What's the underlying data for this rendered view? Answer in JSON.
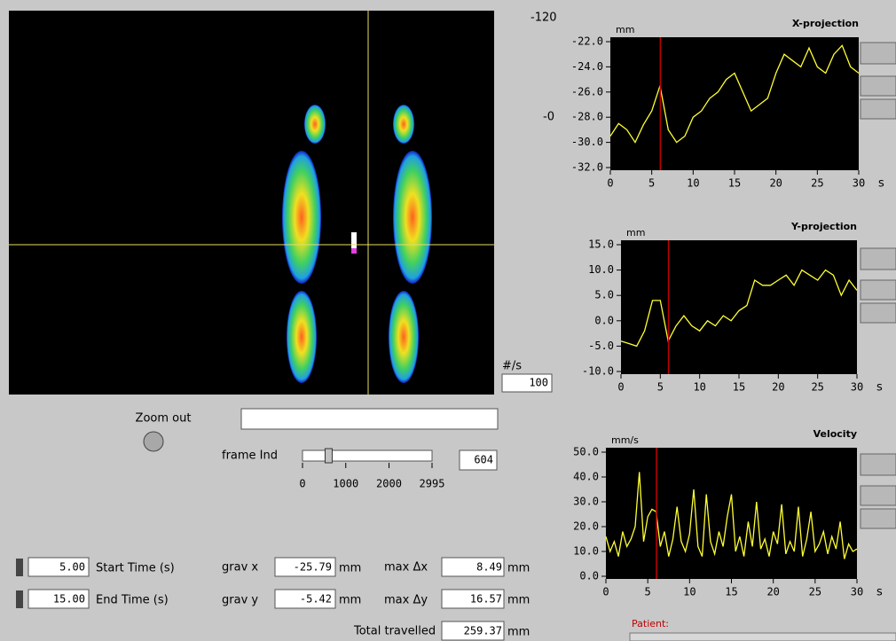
{
  "chart_data": [
    {
      "type": "line",
      "title": "X-projection",
      "y_unit": "mm",
      "x_unit": "s",
      "color": "#ffff33",
      "cursor": 6.04,
      "cursor_color": "#c00000",
      "xlim": [
        0,
        30
      ],
      "xticks": [
        0,
        5,
        10,
        15,
        20,
        25,
        30
      ],
      "ylim": [
        -32,
        -22
      ],
      "yticks": [
        {
          "value": -22,
          "label": "-22.0"
        },
        {
          "value": -24,
          "label": "-24.0"
        },
        {
          "value": -26,
          "label": "-26.0"
        },
        {
          "value": -28,
          "label": "-28.0"
        },
        {
          "value": -30,
          "label": "-30.0"
        },
        {
          "value": -32,
          "label": "-32.0"
        }
      ],
      "x": [
        0,
        1,
        2,
        3,
        4,
        5,
        6,
        7,
        8,
        9,
        10,
        11,
        12,
        13,
        14,
        15,
        16,
        17,
        18,
        19,
        20,
        21,
        22,
        23,
        24,
        25,
        26,
        27,
        28,
        29,
        30
      ],
      "values": [
        -29.5,
        -28.5,
        -29,
        -30,
        -28.6,
        -27.5,
        -25.5,
        -29,
        -30,
        -29.5,
        -28,
        -27.5,
        -26.5,
        -26,
        -25,
        -24.5,
        -26,
        -27.5,
        -27,
        -26.5,
        -24.5,
        -23,
        -23.5,
        -24,
        -22.5,
        -24,
        -24.5,
        -23,
        -22.3,
        -24,
        -24.5
      ]
    },
    {
      "type": "line",
      "title": "Y-projection",
      "y_unit": "mm",
      "x_unit": "s",
      "color": "#ffff33",
      "cursor": 6.04,
      "cursor_color": "#c00000",
      "xlim": [
        0,
        30
      ],
      "xticks": [
        0,
        5,
        10,
        15,
        20,
        25,
        30
      ],
      "ylim": [
        -10,
        15
      ],
      "yticks": [
        {
          "value": 15,
          "label": "15.0"
        },
        {
          "value": 10,
          "label": "10.0"
        },
        {
          "value": 5,
          "label": "5.0"
        },
        {
          "value": 0,
          "label": "0.0"
        },
        {
          "value": -5,
          "label": "-5.0"
        },
        {
          "value": -10,
          "label": "-10.0"
        }
      ],
      "x": [
        0,
        1,
        2,
        3,
        4,
        5,
        6,
        7,
        8,
        9,
        10,
        11,
        12,
        13,
        14,
        15,
        16,
        17,
        18,
        19,
        20,
        21,
        22,
        23,
        24,
        25,
        26,
        27,
        28,
        29,
        30
      ],
      "values": [
        -4,
        -4.5,
        -5,
        -2,
        4,
        4,
        -4,
        -1,
        1,
        -1,
        -2,
        0,
        -1,
        1,
        0,
        2,
        3,
        8,
        7,
        7,
        8,
        9,
        7,
        10,
        9,
        8,
        10,
        9,
        5,
        8,
        6
      ]
    },
    {
      "type": "line",
      "title": "Velocity",
      "y_unit": "mm/s",
      "x_unit": "s",
      "color": "#ffff33",
      "cursor": 6.04,
      "cursor_color": "#c00000",
      "xlim": [
        0,
        30
      ],
      "xticks": [
        0,
        5,
        10,
        15,
        20,
        25,
        30
      ],
      "ylim": [
        0,
        50
      ],
      "yticks": [
        {
          "value": 50,
          "label": "50.0"
        },
        {
          "value": 40,
          "label": "40.0"
        },
        {
          "value": 30,
          "label": "30.0"
        },
        {
          "value": 20,
          "label": "20.0"
        },
        {
          "value": 10,
          "label": "10.0"
        },
        {
          "value": 0,
          "label": "0.0"
        }
      ],
      "x": [
        0,
        0.5,
        1,
        1.5,
        2,
        2.5,
        3,
        3.5,
        4,
        4.5,
        5,
        5.5,
        6,
        6.5,
        7,
        7.5,
        8,
        8.5,
        9,
        9.5,
        10,
        10.5,
        11,
        11.5,
        12,
        12.5,
        13,
        13.5,
        14,
        14.5,
        15,
        15.5,
        16,
        16.5,
        17,
        17.5,
        18,
        18.5,
        19,
        19.5,
        20,
        20.5,
        21,
        21.5,
        22,
        22.5,
        23,
        23.5,
        24,
        24.5,
        25,
        25.5,
        26,
        26.5,
        27,
        27.5,
        28,
        28.5,
        29,
        29.5,
        30
      ],
      "values": [
        16,
        10,
        14,
        8,
        18,
        12,
        15,
        20,
        42,
        14,
        24,
        27,
        26,
        12,
        18,
        8,
        15,
        28,
        14,
        10,
        17,
        35,
        12,
        8,
        33,
        14,
        9,
        18,
        12,
        24,
        33,
        10,
        16,
        8,
        22,
        12,
        30,
        11,
        15,
        8,
        18,
        13,
        29,
        9,
        14,
        10,
        28,
        8,
        15,
        26,
        10,
        13,
        18,
        9,
        16,
        11,
        22,
        7,
        13,
        10,
        11
      ]
    }
  ],
  "scale_labels": [
    "-120",
    "-0"
  ],
  "rate": {
    "label": "#/s",
    "value": "100"
  },
  "zoom_out": "Zoom out",
  "frame_slider": {
    "label": "frame Ind",
    "lim": [
      0,
      2995
    ],
    "ticks": [
      0,
      1000,
      2000,
      2995
    ],
    "value": 604
  },
  "start_time": {
    "label": "Start Time (s)",
    "value": "5.00"
  },
  "end_time": {
    "label": "End Time (s)",
    "value": "15.00"
  },
  "grav_x": {
    "label": "grav x",
    "value": "-25.79",
    "unit": "mm"
  },
  "grav_y": {
    "label": "grav y",
    "value": "-5.42",
    "unit": "mm"
  },
  "max_dx": {
    "label": "max Δx",
    "value": "8.49",
    "unit": "mm"
  },
  "max_dy": {
    "label": "max Δy",
    "value": "16.57",
    "unit": "mm"
  },
  "total": {
    "label": "Total travelled",
    "value": "259.37",
    "unit": "mm"
  },
  "patient": "Patient:"
}
